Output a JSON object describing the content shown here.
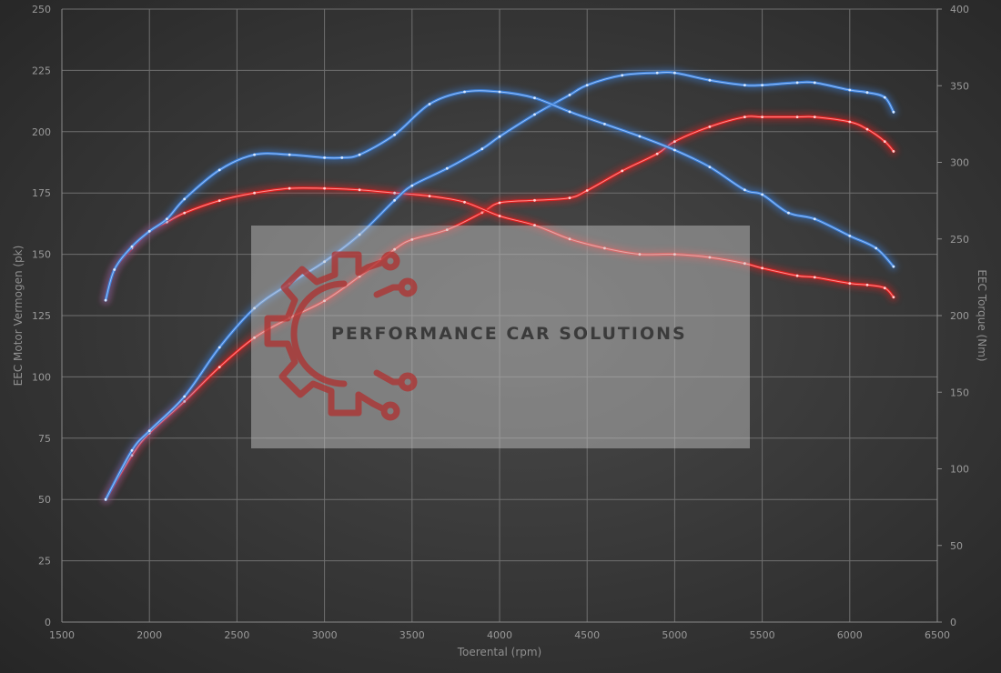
{
  "chart_data": {
    "type": "line",
    "xlabel": "Toerental (rpm)",
    "ylabel_left": "EEC Motor Vermogen (pk)",
    "ylabel_right": "EEC Torque (Nm)",
    "xlim": [
      1500,
      6500
    ],
    "ylim_left": [
      0,
      250
    ],
    "ylim_right": [
      0,
      400
    ],
    "x_ticks": [
      1500,
      2000,
      2500,
      3000,
      3500,
      4000,
      4500,
      5000,
      5500,
      6000,
      6500
    ],
    "y_left_ticks": [
      0,
      25,
      50,
      75,
      100,
      125,
      150,
      175,
      200,
      225,
      250
    ],
    "y_right_ticks": [
      0,
      50,
      100,
      150,
      200,
      250,
      300,
      350,
      400
    ],
    "grid": true,
    "legend": "none",
    "series": [
      {
        "color": "#e02020",
        "axis": "left",
        "x": [
          1750,
          1900,
          2000,
          2200,
          2400,
          2600,
          2800,
          3000,
          3200,
          3400,
          3500,
          3700,
          3900,
          4000,
          4200,
          4400,
          4500,
          4700,
          4900,
          5000,
          5200,
          5400,
          5500,
          5700,
          5800,
          6000,
          6100,
          6200,
          6250
        ],
        "y": [
          50,
          68,
          77,
          90,
          104,
          116,
          124,
          131,
          141,
          152,
          156,
          160,
          167,
          171,
          172,
          173,
          176,
          184,
          191,
          196,
          202,
          206,
          206,
          206,
          206,
          204,
          201,
          196,
          192
        ]
      },
      {
        "color": "#e02020",
        "axis": "right",
        "x": [
          1750,
          1800,
          1900,
          2000,
          2100,
          2200,
          2400,
          2600,
          2800,
          3000,
          3200,
          3400,
          3600,
          3800,
          4000,
          4200,
          4400,
          4600,
          4800,
          5000,
          5200,
          5400,
          5500,
          5700,
          5800,
          6000,
          6100,
          6200,
          6250
        ],
        "y": [
          210,
          230,
          244,
          255,
          261,
          267,
          275,
          280,
          283,
          283,
          282,
          280,
          278,
          274,
          265,
          259,
          250,
          244,
          240,
          240,
          238,
          234,
          231,
          226,
          225,
          221,
          220,
          218,
          212
        ]
      },
      {
        "color": "#3c7fd6",
        "axis": "left",
        "x": [
          1750,
          1900,
          2000,
          2200,
          2400,
          2600,
          2800,
          3000,
          3200,
          3400,
          3500,
          3700,
          3900,
          4000,
          4200,
          4400,
          4500,
          4700,
          4900,
          5000,
          5200,
          5400,
          5500,
          5700,
          5800,
          6000,
          6100,
          6200,
          6250
        ],
        "y": [
          50,
          70,
          78,
          92,
          112,
          128,
          138,
          147,
          158,
          172,
          178,
          185,
          193,
          198,
          207,
          215,
          219,
          223,
          224,
          224,
          221,
          219,
          219,
          220,
          220,
          217,
          216,
          214,
          208
        ]
      },
      {
        "color": "#3c7fd6",
        "axis": "right",
        "x": [
          1750,
          1800,
          1900,
          2000,
          2100,
          2200,
          2400,
          2600,
          2800,
          3000,
          3100,
          3200,
          3400,
          3600,
          3800,
          4000,
          4200,
          4400,
          4600,
          4800,
          5000,
          5200,
          5400,
          5500,
          5650,
          5800,
          6000,
          6150,
          6250
        ],
        "y": [
          210,
          230,
          245,
          255,
          263,
          276,
          295,
          305,
          305,
          303,
          303,
          305,
          318,
          338,
          346,
          346,
          342,
          333,
          325,
          317,
          308,
          297,
          282,
          279,
          267,
          263,
          252,
          244,
          232
        ]
      }
    ]
  },
  "watermark": {
    "text": "PERFORMANCE CAR SOLUTIONS",
    "logo": "gear-circuit-logo"
  }
}
